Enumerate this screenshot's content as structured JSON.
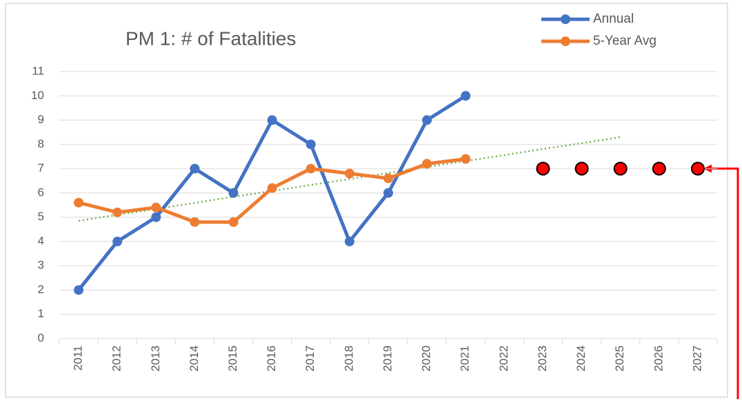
{
  "chart_data": {
    "type": "line",
    "title": "PM 1: # of Fatalities",
    "categories": [
      "2011",
      "2012",
      "2013",
      "2014",
      "2015",
      "2016",
      "2017",
      "2018",
      "2019",
      "2020",
      "2021",
      "2022",
      "2023",
      "2024",
      "2025",
      "2026",
      "2027"
    ],
    "series": [
      {
        "name": "Annual",
        "color": "#4472c4",
        "values": [
          2,
          4,
          5,
          7,
          6,
          9,
          8,
          4,
          6,
          9,
          10,
          null,
          null,
          null,
          null,
          null,
          null
        ]
      },
      {
        "name": "5-Year Avg",
        "color": "#ed7d31",
        "values": [
          5.6,
          5.2,
          5.4,
          4.8,
          4.8,
          6.2,
          7.0,
          6.8,
          6.6,
          7.2,
          7.4,
          null,
          null,
          null,
          null,
          null,
          null
        ]
      }
    ],
    "targets": {
      "color": "#ff0000",
      "values": [
        null,
        null,
        null,
        null,
        null,
        null,
        null,
        null,
        null,
        null,
        null,
        null,
        7,
        7,
        7,
        7,
        7
      ]
    },
    "trendline": {
      "color": "#70ad47",
      "values": [
        4.85,
        5.1,
        5.34,
        5.59,
        5.84,
        6.08,
        6.33,
        6.57,
        6.82,
        7.07,
        7.31,
        7.56,
        7.81,
        8.05,
        8.3,
        null,
        null
      ]
    },
    "ylim": [
      0,
      11
    ],
    "yticks": [
      0,
      1,
      2,
      3,
      4,
      5,
      6,
      7,
      8,
      9,
      10,
      11
    ],
    "grid": true
  }
}
